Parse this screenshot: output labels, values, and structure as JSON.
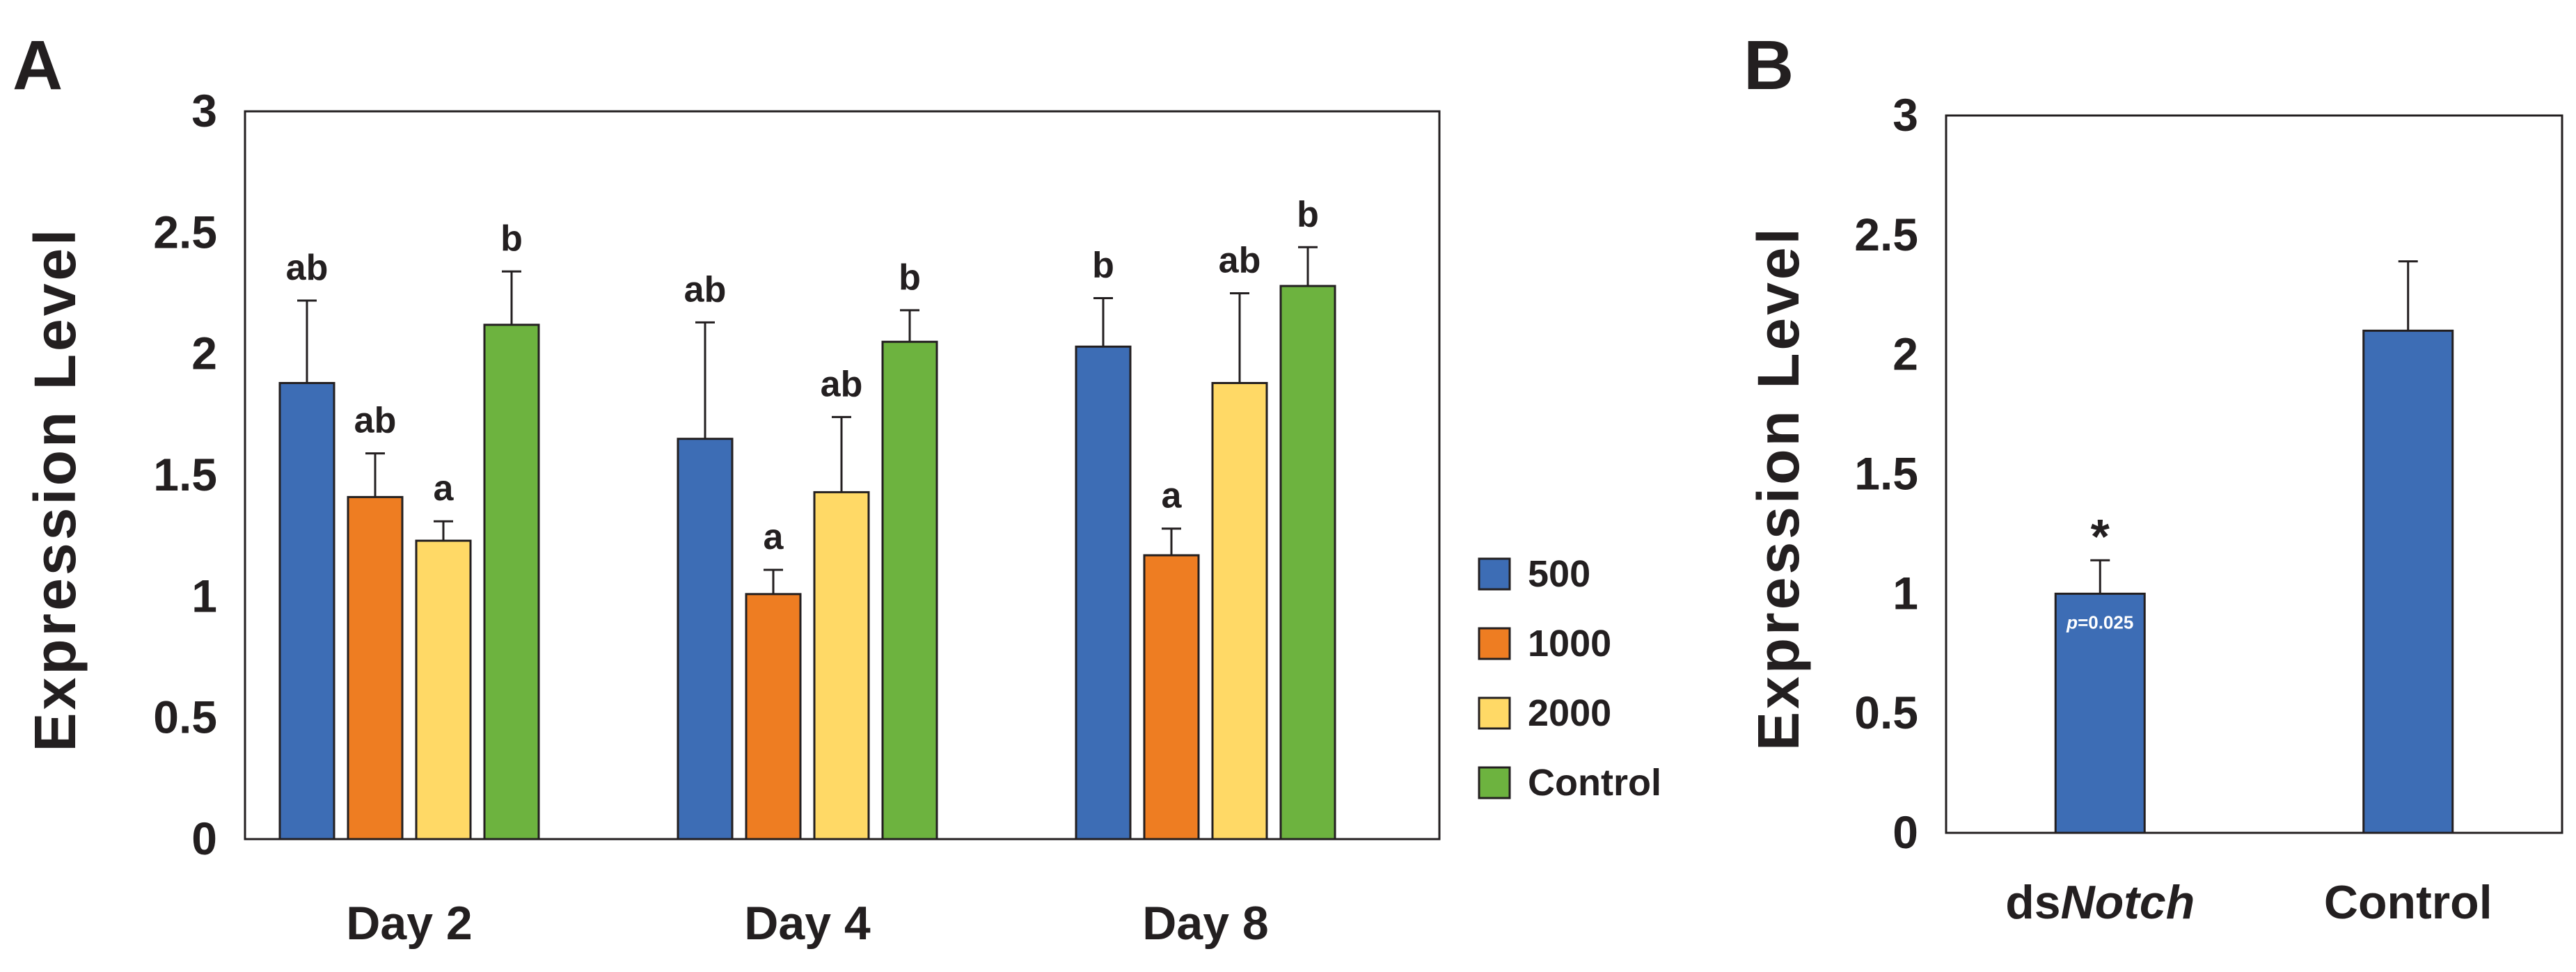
{
  "panels": {
    "a_label": "A",
    "b_label": "B"
  },
  "colors": {
    "series_500": "#3d6db5",
    "series_1000": "#ee7d22",
    "series_2000": "#ffd966",
    "series_control": "#6db33f",
    "panel_b_bar": "#3d6db5"
  },
  "chart_data": [
    {
      "type": "bar",
      "panel": "A",
      "title": "",
      "xlabel": "",
      "ylabel": "Expression Level",
      "ylim": [
        0,
        3
      ],
      "yticks": [
        "0",
        "0.5",
        "1",
        "1.5",
        "2",
        "2.5",
        "3"
      ],
      "categories": [
        "Day 2",
        "Day 4",
        "Day 8"
      ],
      "legend_position": "right",
      "series": [
        {
          "name": "500",
          "values": [
            1.88,
            1.65,
            2.03
          ],
          "errors": [
            0.34,
            0.48,
            0.2
          ],
          "letters": [
            "ab",
            "ab",
            "b"
          ]
        },
        {
          "name": "1000",
          "values": [
            1.41,
            1.01,
            1.17
          ],
          "errors": [
            0.18,
            0.1,
            0.11
          ],
          "letters": [
            "ab",
            "a",
            "a"
          ]
        },
        {
          "name": "2000",
          "values": [
            1.23,
            1.43,
            1.88
          ],
          "errors": [
            0.08,
            0.31,
            0.37
          ],
          "letters": [
            "a",
            "ab",
            "ab"
          ]
        },
        {
          "name": "Control",
          "values": [
            2.12,
            2.05,
            2.28
          ],
          "errors": [
            0.22,
            0.13,
            0.16
          ],
          "letters": [
            "b",
            "b",
            "b"
          ]
        }
      ]
    },
    {
      "type": "bar",
      "panel": "B",
      "title": "",
      "xlabel": "",
      "ylabel": "Expression Level",
      "ylim": [
        0,
        3
      ],
      "yticks": [
        "0",
        "0.5",
        "1",
        "1.5",
        "2",
        "2.5",
        "3"
      ],
      "categories": [
        {
          "prefix": "ds",
          "italic": "Notch"
        },
        {
          "prefix": "Control",
          "italic": ""
        }
      ],
      "values": [
        1.0,
        2.1
      ],
      "errors": [
        0.14,
        0.29
      ],
      "annotations": [
        {
          "star": "*",
          "p_prefix": "p",
          "p_rest": "=0.025"
        },
        null
      ]
    }
  ]
}
